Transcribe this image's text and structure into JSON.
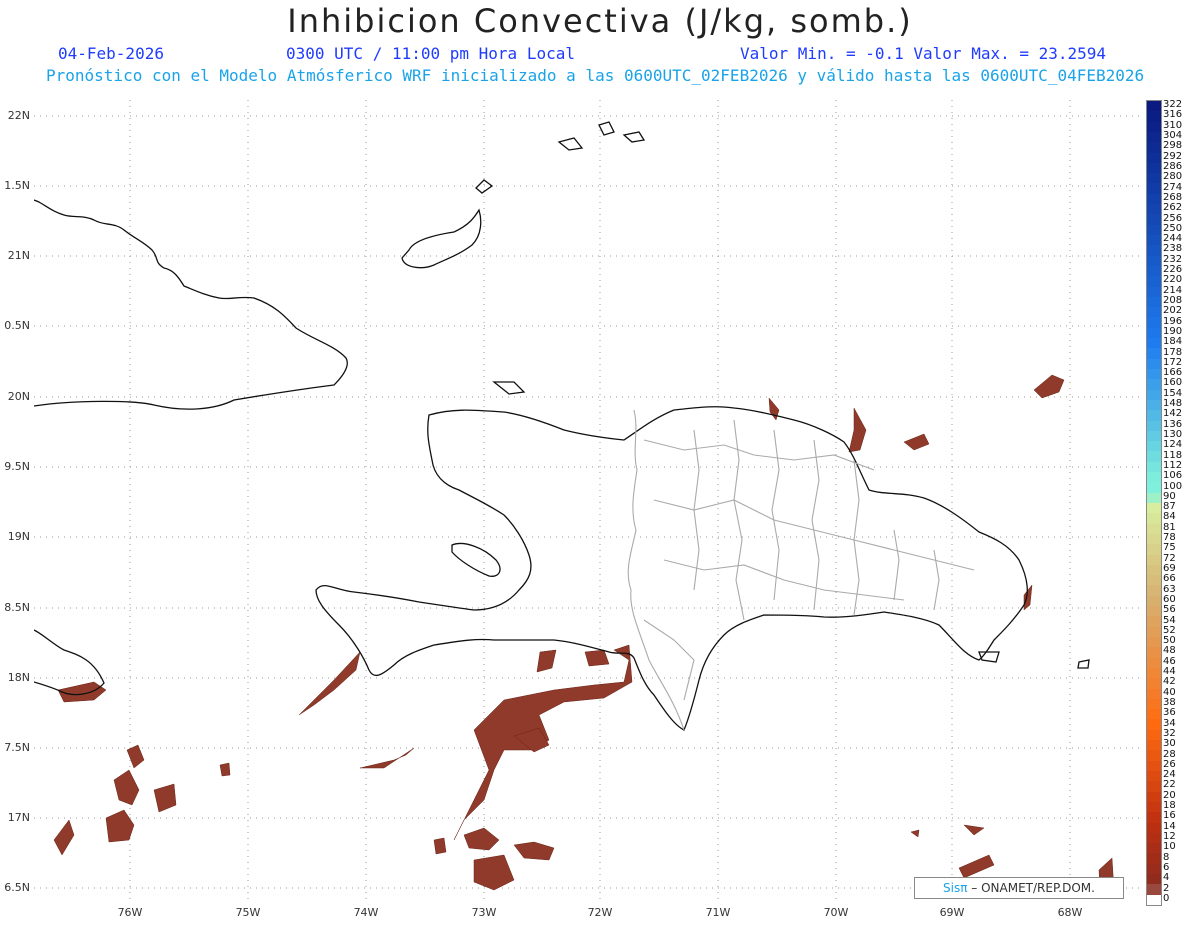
{
  "header": {
    "title": "Inhibicion Convectiva (J/kg, somb.)",
    "date": "04-Feb-2026",
    "time": "0300 UTC / 11:00 pm Hora Local",
    "minmax": "Valor Min. = -0.1  Valor Max. = 23.2594",
    "subtitle": "Pronóstico con el Modelo Atmósferico WRF inicializado a las 0600UTC_02FEB2026 y válido hasta las  0600UTC_04FEB2026"
  },
  "axes": {
    "lat_labels": [
      "22N",
      "1.5N",
      "21N",
      "0.5N",
      "20N",
      "9.5N",
      "19N",
      "8.5N",
      "18N",
      "7.5N",
      "17N",
      "6.5N"
    ],
    "lon_labels": [
      "76W",
      "75W",
      "74W",
      "73W",
      "72W",
      "71W",
      "70W",
      "69W",
      "68W"
    ]
  },
  "colorbar": {
    "labels": [
      "322",
      "316",
      "310",
      "304",
      "298",
      "292",
      "286",
      "280",
      "274",
      "268",
      "262",
      "256",
      "250",
      "244",
      "238",
      "232",
      "226",
      "220",
      "214",
      "208",
      "202",
      "196",
      "190",
      "184",
      "178",
      "172",
      "166",
      "160",
      "154",
      "148",
      "142",
      "136",
      "130",
      "124",
      "118",
      "112",
      "106",
      "100",
      "90",
      "87",
      "84",
      "81",
      "78",
      "75",
      "72",
      "69",
      "66",
      "63",
      "60",
      "56",
      "54",
      "52",
      "50",
      "48",
      "46",
      "44",
      "42",
      "40",
      "38",
      "36",
      "34",
      "32",
      "30",
      "28",
      "26",
      "24",
      "22",
      "20",
      "18",
      "16",
      "14",
      "12",
      "10",
      "8",
      "6",
      "4",
      "2",
      "0"
    ],
    "colors": {
      "top": "#0a1a80",
      "mid_blue": "#1e7cf0",
      "cyan": "#7ff0dc",
      "green": "#d8f0a0",
      "tan": "#d8b070",
      "orange": "#ff6a10",
      "red": "#c03010",
      "dark": "#8a2a20"
    }
  },
  "colors": {
    "coast": "#111111",
    "provinces": "#aaaaaa",
    "cin_fill": "#8f3a2a"
  },
  "credit": {
    "sis": "Sisπ",
    "rest": "– ONAMET/REP.DOM."
  }
}
